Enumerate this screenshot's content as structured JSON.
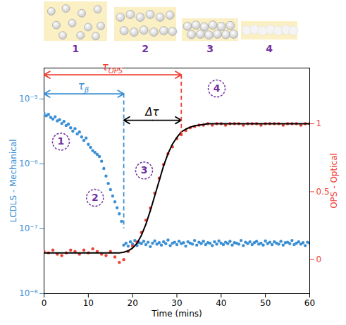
{
  "chart_data": {
    "type": "scatter",
    "x_label": "Time (mins)",
    "y_label": "LCDLS - Mechanical",
    "y2_label": "OPS - Optical",
    "xlim": [
      0,
      60
    ],
    "xticks": [
      0,
      10,
      20,
      30,
      40,
      50,
      60
    ],
    "log": "y",
    "ylim": [
      1e-08,
      3e-05
    ],
    "yticks": [
      {
        "value": 1e-08,
        "label": "10⁻⁸"
      },
      {
        "value": 1e-07,
        "label": "10⁻⁷"
      },
      {
        "value": 1e-06,
        "label": "10⁻⁶"
      },
      {
        "value": 1e-05,
        "label": "10⁻⁵"
      }
    ],
    "y2lim": [
      -0.25,
      1.41
    ],
    "y2ticks": [
      0,
      0.5,
      1
    ],
    "series": [
      {
        "type": "scatter",
        "axis": "y",
        "color": "#3a8fd4",
        "marker": "circle",
        "x": [
          0,
          0.5,
          1,
          1.5,
          2,
          2.5,
          3,
          3.5,
          4,
          4.5,
          5,
          5.5,
          6,
          6.5,
          7,
          7.5,
          8,
          8.5,
          9,
          9.5,
          10,
          10.5,
          11,
          11.5,
          12,
          12.5,
          13,
          13.5,
          14,
          14.5,
          15,
          15.5,
          16,
          16.5,
          17,
          17.5,
          18,
          18.5,
          19,
          19.5,
          20,
          20.5,
          21,
          21.5,
          22,
          22.5,
          23,
          23.5,
          24,
          24.5,
          25,
          25.5,
          26,
          26.5,
          27,
          27.5,
          28,
          28.5,
          29,
          29.5,
          30,
          30.5,
          31,
          31.5,
          32,
          32.5,
          33,
          33.5,
          34,
          34.5,
          35,
          35.5,
          36,
          36.5,
          37,
          37.5,
          38,
          38.5,
          39,
          39.5,
          40,
          40.5,
          41,
          41.5,
          42,
          42.5,
          43,
          43.5,
          44,
          44.5,
          45,
          45.5,
          46,
          46.5,
          47,
          47.5,
          48,
          48.5,
          49,
          49.5,
          50,
          50.5,
          51,
          51.5,
          52,
          52.5,
          53,
          53.5,
          54,
          54.5,
          55,
          55.5,
          56,
          56.5,
          57,
          57.5,
          58,
          58.5,
          59,
          59.5,
          60
        ],
        "values": [
          6e-06,
          5.5e-06,
          5.8e-06,
          5.2e-06,
          4.9e-06,
          5.3e-06,
          4.6e-06,
          4.8e-06,
          4.2e-06,
          4.5e-06,
          3.9e-06,
          4.1e-06,
          3.6e-06,
          3.2e-06,
          3.5e-06,
          2.9e-06,
          3.1e-06,
          2.6e-06,
          2.3e-06,
          2.5e-06,
          2e-06,
          1.8e-06,
          1.6e-06,
          1.5e-06,
          1.4e-06,
          1.3e-06,
          1.1e-06,
          8.5e-07,
          6.5e-07,
          5e-07,
          4e-07,
          3.2e-07,
          2.6e-07,
          2.1e-07,
          1.7e-07,
          1.3e-07,
          5.6e-08,
          6e-08,
          5.4e-08,
          6.3e-08,
          5.8e-08,
          6.6e-08,
          5.5e-08,
          6.1e-08,
          5.9e-08,
          6.4e-08,
          5.7e-08,
          6.2e-08,
          5.3e-08,
          6e-08,
          6.5e-08,
          5.8e-08,
          6.1e-08,
          5.6e-08,
          6.3e-08,
          5.9e-08,
          6.7e-08,
          5.5e-08,
          6e-08,
          6.2e-08,
          5.7e-08,
          6.4e-08,
          5.9e-08,
          6.1e-08,
          5.4e-08,
          6.3e-08,
          6e-08,
          5.8e-08,
          6.6e-08,
          5.6e-08,
          6.2e-08,
          5.9e-08,
          6.4e-08,
          5.7e-08,
          6.1e-08,
          6e-08,
          5.5e-08,
          6.3e-08,
          5.8e-08,
          6.5e-08,
          6e-08,
          5.7e-08,
          6.2e-08,
          5.9e-08,
          6.4e-08,
          5.6e-08,
          6.1e-08,
          6e-08,
          5.8e-08,
          6.6e-08,
          5.5e-08,
          6.2e-08,
          5.9e-08,
          6.3e-08,
          5.7e-08,
          6.1e-08,
          6.4e-08,
          5.8e-08,
          6e-08,
          5.6e-08,
          6.5e-08,
          5.9e-08,
          6.2e-08,
          5.7e-08,
          6.3e-08,
          6e-08,
          5.8e-08,
          6.4e-08,
          5.6e-08,
          6.1e-08,
          6.2e-08,
          5.9e-08,
          6.6e-08,
          5.7e-08,
          6e-08,
          6.3e-08,
          5.8e-08,
          6.1e-08,
          5.5e-08,
          6.2e-08,
          6e-08
        ]
      },
      {
        "type": "scatter",
        "axis": "y2",
        "color": "#ef4136",
        "marker": "circle",
        "x": [
          0,
          1,
          2,
          3,
          4,
          5,
          6,
          7,
          8,
          9,
          10,
          11,
          12,
          13,
          14,
          15,
          16,
          17,
          18,
          19,
          20,
          21,
          22,
          23,
          24,
          25,
          26,
          27,
          28,
          29,
          30,
          31,
          32,
          33,
          34,
          35,
          36,
          37,
          38,
          39,
          40,
          41,
          42,
          43,
          44,
          45,
          46,
          47,
          48,
          49,
          50,
          51,
          52,
          53,
          54,
          55,
          56,
          57,
          58,
          59,
          60
        ],
        "values": [
          0.06,
          0.05,
          0.07,
          0.04,
          0.03,
          0.05,
          0.07,
          0.06,
          0.04,
          0.07,
          0.05,
          0.08,
          0.06,
          0.04,
          0.03,
          0.06,
          0.02,
          -0.02,
          0.0,
          0.06,
          0.1,
          0.13,
          0.2,
          0.29,
          0.38,
          0.49,
          0.6,
          0.7,
          0.78,
          0.83,
          0.89,
          0.92,
          0.95,
          0.97,
          0.98,
          0.99,
          0.99,
          1.0,
          0.99,
          1.0,
          1.0,
          0.99,
          1.0,
          1.0,
          1.0,
          0.99,
          1.0,
          1.0,
          1.0,
          0.99,
          1.0,
          1.0,
          1.0,
          1.0,
          0.99,
          1.0,
          1.0,
          1.0,
          0.99,
          1.0,
          1.0
        ]
      },
      {
        "type": "line",
        "axis": "y2",
        "color": "#000000",
        "line_style": "solid",
        "x": [
          0,
          1,
          2,
          3,
          4,
          5,
          6,
          7,
          8,
          9,
          10,
          11,
          12,
          13,
          14,
          15,
          16,
          17,
          18,
          19,
          20,
          21,
          22,
          23,
          24,
          25,
          26,
          27,
          28,
          29,
          30,
          31,
          32,
          33,
          34,
          35,
          36,
          37,
          38,
          39,
          40,
          41,
          42,
          43,
          44,
          45,
          46,
          47,
          48,
          49,
          50,
          51,
          52,
          53,
          54,
          55,
          56,
          57,
          58,
          59,
          60
        ],
        "values": [
          0.05,
          0.05,
          0.05,
          0.05,
          0.05,
          0.05,
          0.05,
          0.05,
          0.05,
          0.05,
          0.05,
          0.05,
          0.05,
          0.05,
          0.05,
          0.05,
          0.05,
          0.05,
          0.055,
          0.065,
          0.085,
          0.12,
          0.18,
          0.26,
          0.36,
          0.47,
          0.58,
          0.69,
          0.78,
          0.85,
          0.9,
          0.94,
          0.96,
          0.975,
          0.985,
          0.99,
          0.995,
          1.0,
          1.0,
          1.0,
          1.0,
          1.0,
          1.0,
          1.0,
          1.0,
          1.0,
          1.0,
          1.0,
          1.0,
          1.0,
          1.0,
          1.0,
          1.0,
          1.0,
          1.0,
          1.0,
          1.0,
          1.0,
          1.0,
          1.0,
          1.0
        ]
      }
    ],
    "intervals": [
      {
        "symbol": "τ",
        "subscript": "β",
        "axis": "y",
        "color": "#3a8fd4",
        "from": 0,
        "to": 18,
        "level": 1.2e-05,
        "line_end": 1e-07
      },
      {
        "symbol": "τ",
        "subscript": "OPS",
        "axis": "y2",
        "color": "#ef4136",
        "from": 0,
        "to": 31,
        "level": 1.36,
        "line_end": 0.92
      },
      {
        "symbol": "Δτ",
        "axis": "y",
        "color": "#000000",
        "from": 18,
        "to": 31,
        "level": 4.7e-06
      }
    ],
    "annotations": [
      {
        "text": "1",
        "x": 3.8,
        "y": 2.2e-06
      },
      {
        "text": "2",
        "x": 11.5,
        "y": 3e-07
      },
      {
        "text": "3",
        "x": 22.6,
        "y": 7.9e-07
      },
      {
        "text": "4",
        "x": 39,
        "y": 1.45e-05
      }
    ],
    "stages": [
      "1",
      "2",
      "3",
      "4"
    ]
  }
}
